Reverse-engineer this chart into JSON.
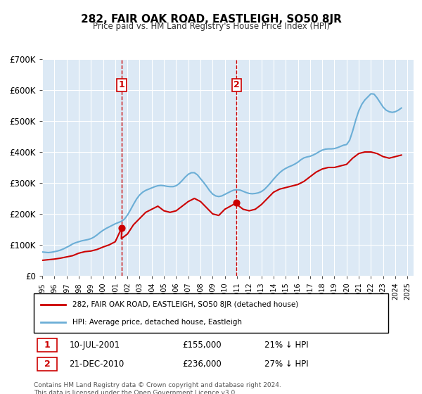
{
  "title": "282, FAIR OAK ROAD, EASTLEIGH, SO50 8JR",
  "subtitle": "Price paid vs. HM Land Registry's House Price Index (HPI)",
  "ylabel": "",
  "ylim": [
    0,
    700000
  ],
  "yticks": [
    0,
    100000,
    200000,
    300000,
    400000,
    500000,
    600000,
    700000
  ],
  "ytick_labels": [
    "£0",
    "£100K",
    "£200K",
    "£300K",
    "£400K",
    "£500K",
    "£600K",
    "£700K"
  ],
  "hpi_color": "#6baed6",
  "price_color": "#cc0000",
  "vline_color": "#cc0000",
  "background_color": "#dce9f5",
  "purchase1": {
    "date_num": 2001.53,
    "price": 155000,
    "label": "1",
    "text": "10-JUL-2001",
    "amount": "£155,000",
    "pct": "21% ↓ HPI"
  },
  "purchase2": {
    "date_num": 2010.97,
    "price": 236000,
    "label": "2",
    "text": "21-DEC-2010",
    "amount": "£236,000",
    "pct": "27% ↓ HPI"
  },
  "legend_property": "282, FAIR OAK ROAD, EASTLEIGH, SO50 8JR (detached house)",
  "legend_hpi": "HPI: Average price, detached house, Eastleigh",
  "footer": "Contains HM Land Registry data © Crown copyright and database right 2024.\nThis data is licensed under the Open Government Licence v3.0.",
  "hpi_data": {
    "years": [
      1995.0,
      1995.25,
      1995.5,
      1995.75,
      1996.0,
      1996.25,
      1996.5,
      1996.75,
      1997.0,
      1997.25,
      1997.5,
      1997.75,
      1998.0,
      1998.25,
      1998.5,
      1998.75,
      1999.0,
      1999.25,
      1999.5,
      1999.75,
      2000.0,
      2000.25,
      2000.5,
      2000.75,
      2001.0,
      2001.25,
      2001.5,
      2001.75,
      2002.0,
      2002.25,
      2002.5,
      2002.75,
      2003.0,
      2003.25,
      2003.5,
      2003.75,
      2004.0,
      2004.25,
      2004.5,
      2004.75,
      2005.0,
      2005.25,
      2005.5,
      2005.75,
      2006.0,
      2006.25,
      2006.5,
      2006.75,
      2007.0,
      2007.25,
      2007.5,
      2007.75,
      2008.0,
      2008.25,
      2008.5,
      2008.75,
      2009.0,
      2009.25,
      2009.5,
      2009.75,
      2010.0,
      2010.25,
      2010.5,
      2010.75,
      2011.0,
      2011.25,
      2011.5,
      2011.75,
      2012.0,
      2012.25,
      2012.5,
      2012.75,
      2013.0,
      2013.25,
      2013.5,
      2013.75,
      2014.0,
      2014.25,
      2014.5,
      2014.75,
      2015.0,
      2015.25,
      2015.5,
      2015.75,
      2016.0,
      2016.25,
      2016.5,
      2016.75,
      2017.0,
      2017.25,
      2017.5,
      2017.75,
      2018.0,
      2018.25,
      2018.5,
      2018.75,
      2019.0,
      2019.25,
      2019.5,
      2019.75,
      2020.0,
      2020.25,
      2020.5,
      2020.75,
      2021.0,
      2021.25,
      2021.5,
      2021.75,
      2022.0,
      2022.25,
      2022.5,
      2022.75,
      2023.0,
      2023.25,
      2023.5,
      2023.75,
      2024.0,
      2024.25,
      2024.5
    ],
    "values": [
      77000,
      76000,
      75000,
      76000,
      78000,
      80000,
      83000,
      87000,
      92000,
      97000,
      103000,
      107000,
      110000,
      113000,
      115000,
      117000,
      120000,
      125000,
      132000,
      140000,
      147000,
      153000,
      158000,
      163000,
      168000,
      172000,
      176000,
      183000,
      196000,
      213000,
      231000,
      248000,
      261000,
      270000,
      276000,
      280000,
      284000,
      288000,
      291000,
      292000,
      291000,
      289000,
      288000,
      288000,
      291000,
      298000,
      308000,
      319000,
      328000,
      333000,
      333000,
      326000,
      314000,
      302000,
      289000,
      275000,
      264000,
      258000,
      256000,
      258000,
      263000,
      268000,
      273000,
      277000,
      278000,
      277000,
      273000,
      269000,
      266000,
      265000,
      266000,
      268000,
      272000,
      279000,
      289000,
      300000,
      312000,
      323000,
      333000,
      341000,
      347000,
      352000,
      356000,
      361000,
      367000,
      375000,
      381000,
      384000,
      386000,
      390000,
      395000,
      401000,
      406000,
      409000,
      410000,
      410000,
      411000,
      414000,
      418000,
      422000,
      424000,
      438000,
      468000,
      503000,
      533000,
      554000,
      568000,
      578000,
      588000,
      587000,
      575000,
      560000,
      545000,
      535000,
      530000,
      528000,
      530000,
      535000,
      542000
    ]
  },
  "price_data": {
    "years": [
      1995.0,
      1995.5,
      1996.0,
      1996.5,
      1997.0,
      1997.5,
      1998.0,
      1998.5,
      1999.0,
      1999.5,
      2000.0,
      2000.5,
      2001.0,
      2001.53,
      2001.5,
      2002.0,
      2002.5,
      2003.0,
      2003.5,
      2004.0,
      2004.5,
      2005.0,
      2005.5,
      2006.0,
      2006.5,
      2007.0,
      2007.5,
      2008.0,
      2008.5,
      2009.0,
      2009.5,
      2010.0,
      2010.97,
      2011.0,
      2011.5,
      2012.0,
      2012.5,
      2013.0,
      2013.5,
      2014.0,
      2014.5,
      2015.0,
      2015.5,
      2016.0,
      2016.5,
      2017.0,
      2017.5,
      2018.0,
      2018.5,
      2019.0,
      2019.5,
      2020.0,
      2020.5,
      2021.0,
      2021.5,
      2022.0,
      2022.5,
      2023.0,
      2023.5,
      2024.0,
      2024.5
    ],
    "values": [
      50000,
      52000,
      54000,
      57000,
      61000,
      65000,
      73000,
      78000,
      80000,
      85000,
      93000,
      100000,
      110000,
      155000,
      120000,
      135000,
      165000,
      185000,
      205000,
      215000,
      225000,
      210000,
      205000,
      210000,
      225000,
      240000,
      250000,
      240000,
      220000,
      200000,
      195000,
      215000,
      236000,
      230000,
      215000,
      210000,
      215000,
      230000,
      250000,
      270000,
      280000,
      285000,
      290000,
      295000,
      305000,
      320000,
      335000,
      345000,
      350000,
      350000,
      355000,
      360000,
      380000,
      395000,
      400000,
      400000,
      395000,
      385000,
      380000,
      385000,
      390000
    ]
  },
  "xlim": [
    1995,
    2025.5
  ],
  "xticks": [
    1995,
    1996,
    1997,
    1998,
    1999,
    2000,
    2001,
    2002,
    2003,
    2004,
    2005,
    2006,
    2007,
    2008,
    2009,
    2010,
    2011,
    2012,
    2013,
    2014,
    2015,
    2016,
    2017,
    2018,
    2019,
    2020,
    2021,
    2022,
    2023,
    2024,
    2025
  ]
}
